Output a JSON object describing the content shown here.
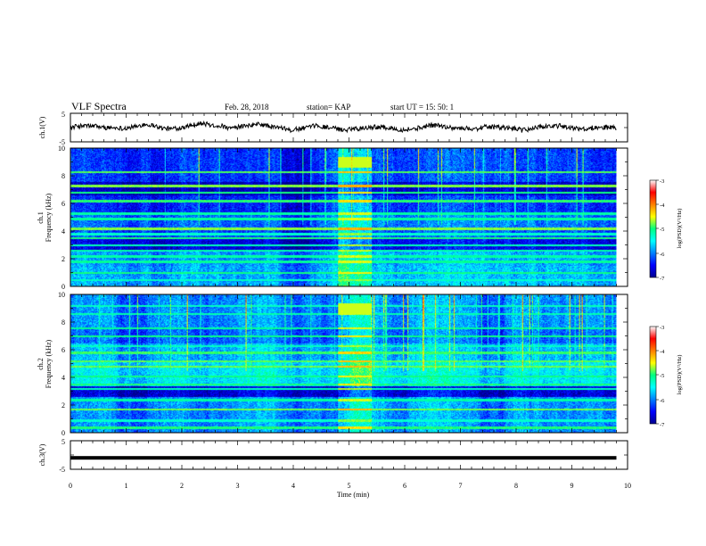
{
  "header": {
    "title": "VLF Spectra",
    "date": "Feb. 28, 2018",
    "station": "station= KAP",
    "start": "start  UT =   15: 50: 1"
  },
  "chart_data": [
    {
      "type": "line",
      "name": "ch1-waveform",
      "ylabel": "ch.1(V)",
      "ylim": [
        -5,
        5
      ],
      "yticks": [
        "5",
        "-5"
      ],
      "xlim": [
        0,
        10
      ]
    },
    {
      "type": "heatmap",
      "name": "ch1-spectrogram",
      "ylabel": "ch.1",
      "ylabel2": "Frequency (kHz)",
      "ylim": [
        0,
        10
      ],
      "yticks": [
        "0",
        "2",
        "4",
        "6",
        "8",
        "10"
      ],
      "xlim": [
        0,
        10
      ],
      "data_xmax": 9.8,
      "burst_x": [
        4.8,
        5.4
      ],
      "lines_khz": [
        0.5,
        1.0,
        1.8,
        2.2,
        2.6,
        3.0,
        3.5,
        3.8,
        4.2,
        4.9,
        5.3,
        6.2,
        6.8,
        7.3,
        8.3
      ],
      "colorbar": {
        "label": "log(PSD)(V²/Hz)",
        "range": [
          -7,
          -3
        ],
        "ticks": [
          "-3",
          "-4",
          "-5",
          "-6",
          "-7"
        ]
      }
    },
    {
      "type": "heatmap",
      "name": "ch2-spectrogram",
      "ylabel": "ch.2",
      "ylabel2": "Frequency (kHz)",
      "ylim": [
        0,
        10
      ],
      "yticks": [
        "0",
        "2",
        "4",
        "6",
        "8",
        "10"
      ],
      "xlim": [
        0,
        10
      ],
      "data_xmax": 9.8,
      "burst_x": [
        4.8,
        5.4
      ],
      "lines_khz": [
        0.4,
        0.9,
        1.7,
        2.4,
        3.2,
        3.5,
        4.1,
        4.8,
        5.2,
        5.8,
        6.3,
        7.0,
        7.6,
        8.6,
        9.2
      ],
      "colorbar": {
        "label": "log(PSD)(V²/Hz)",
        "range": [
          -7,
          -3
        ],
        "ticks": [
          "-3",
          "-4",
          "-5",
          "-6",
          "-7"
        ]
      }
    },
    {
      "type": "line",
      "name": "ch3-waveform",
      "ylabel": "ch.3(V)",
      "ylim": [
        -5,
        5
      ],
      "yticks": [
        "5",
        "-5"
      ],
      "xlim": [
        0,
        10
      ],
      "value": -1.0
    }
  ],
  "xaxis": {
    "label": "Time (min)",
    "ticks": [
      "0",
      "1",
      "2",
      "3",
      "4",
      "5",
      "6",
      "7",
      "8",
      "9",
      "10"
    ]
  }
}
